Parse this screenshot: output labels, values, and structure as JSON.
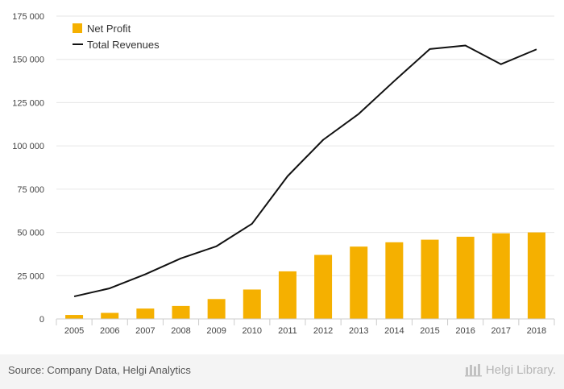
{
  "chart_data": {
    "type": "bar",
    "categories": [
      "2005",
      "2006",
      "2007",
      "2008",
      "2009",
      "2010",
      "2011",
      "2012",
      "2013",
      "2014",
      "2015",
      "2016",
      "2017",
      "2018"
    ],
    "series": [
      {
        "name": "Net Profit",
        "type": "bar",
        "color": "#f5b000",
        "values": [
          2300,
          3500,
          6000,
          7500,
          11500,
          17000,
          27500,
          37000,
          41800,
          44300,
          45800,
          47500,
          49500,
          50000
        ]
      },
      {
        "name": "Total Revenues",
        "type": "line",
        "color": "#111111",
        "values": [
          13000,
          17700,
          25800,
          35000,
          42000,
          55000,
          82500,
          103500,
          118500,
          137500,
          156000,
          158000,
          147200,
          155800
        ]
      }
    ],
    "ylim": [
      0,
      175000
    ],
    "yticks": [
      0,
      25000,
      50000,
      75000,
      100000,
      125000,
      150000,
      175000
    ],
    "ytick_labels": [
      "0",
      "25 000",
      "50 000",
      "75 000",
      "100 000",
      "125 000",
      "150 000",
      "175 000"
    ],
    "legend_position": "top-left",
    "grid": true
  },
  "footer": {
    "source": "Source: Company Data, Helgi Analytics",
    "brand_part1": "Helgi",
    "brand_part2": "Library."
  }
}
